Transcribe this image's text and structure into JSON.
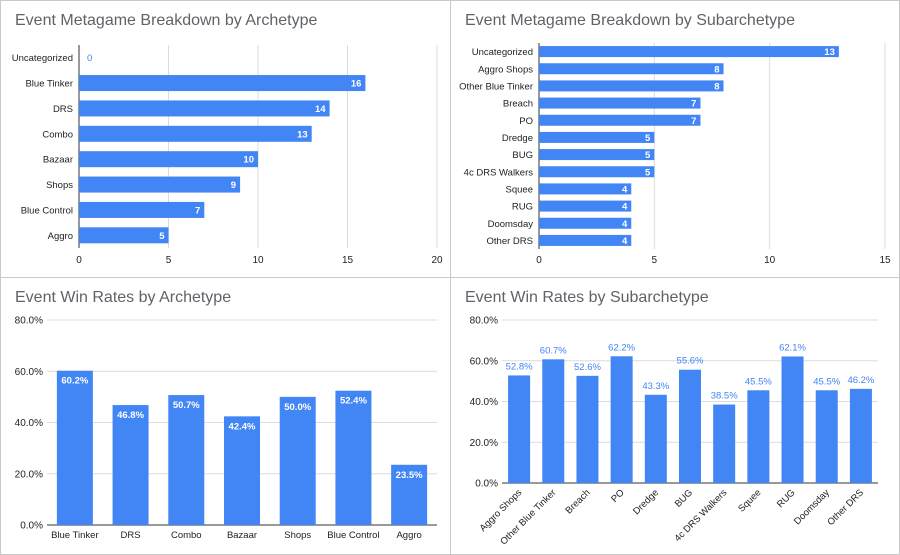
{
  "charts": [
    {
      "title": "Event Metagame Breakdown by Archetype",
      "chart_data": {
        "type": "bar",
        "orientation": "horizontal",
        "categories": [
          "Uncategorized",
          "Blue Tinker",
          "DRS",
          "Combo",
          "Bazaar",
          "Shops",
          "Blue Control",
          "Aggro"
        ],
        "values": [
          0,
          16,
          14,
          13,
          10,
          9,
          7,
          5
        ],
        "xlim": [
          0,
          20
        ],
        "xticks": [
          0,
          5,
          10,
          15,
          20
        ],
        "grid": true,
        "legend": "none"
      }
    },
    {
      "title": "Event Metagame Breakdown by Subarchetype",
      "chart_data": {
        "type": "bar",
        "orientation": "horizontal",
        "categories": [
          "Uncategorized",
          "Aggro Shops",
          "Other Blue Tinker",
          "Breach",
          "PO",
          "Dredge",
          "BUG",
          "4c DRS Walkers",
          "Squee",
          "RUG",
          "Doomsday",
          "Other DRS"
        ],
        "values": [
          13,
          8,
          8,
          7,
          7,
          5,
          5,
          5,
          4,
          4,
          4,
          4
        ],
        "xlim": [
          0,
          15
        ],
        "xticks": [
          0,
          5,
          10,
          15
        ],
        "grid": true,
        "legend": "none"
      }
    },
    {
      "title": "Event Win Rates by Archetype",
      "chart_data": {
        "type": "bar",
        "orientation": "vertical",
        "categories": [
          "Blue Tinker",
          "DRS",
          "Combo",
          "Bazaar",
          "Shops",
          "Blue Control",
          "Aggro"
        ],
        "values": [
          60.2,
          46.8,
          50.7,
          42.4,
          50.0,
          52.4,
          23.5
        ],
        "labels": [
          "60.2%",
          "46.8%",
          "50.7%",
          "42.4%",
          "50.0%",
          "52.4%",
          "23.5%"
        ],
        "ylim": [
          0,
          80
        ],
        "yticks": [
          "0.0%",
          "20.0%",
          "40.0%",
          "60.0%",
          "80.0%"
        ],
        "grid": true,
        "legend": "none"
      }
    },
    {
      "title": "Event Win Rates by Subarchetype",
      "chart_data": {
        "type": "bar",
        "orientation": "vertical",
        "categories": [
          "Aggro Shops",
          "Other Blue Tinker",
          "Breach",
          "PO",
          "Dredge",
          "BUG",
          "4c DRS Walkers",
          "Squee",
          "RUG",
          "Doomsday",
          "Other DRS"
        ],
        "values": [
          52.8,
          60.7,
          52.6,
          62.2,
          43.3,
          55.6,
          38.5,
          45.5,
          62.1,
          45.5,
          46.2
        ],
        "labels": [
          "52.8%",
          "60.7%",
          "52.6%",
          "62.2%",
          "43.3%",
          "55.6%",
          "38.5%",
          "45.5%",
          "62.1%",
          "45.5%",
          "46.2%"
        ],
        "ylim": [
          0,
          80
        ],
        "yticks": [
          "0.0%",
          "20.0%",
          "40.0%",
          "60.0%",
          "80.0%"
        ],
        "grid": true,
        "legend": "none"
      }
    }
  ],
  "colors": {
    "bar": "#4285f4",
    "grid": "#dcdcdc",
    "axis": "#333333",
    "text": "#222222",
    "title": "#5f6368",
    "label_outside": "#4285f4",
    "label_inside": "#ffffff"
  }
}
